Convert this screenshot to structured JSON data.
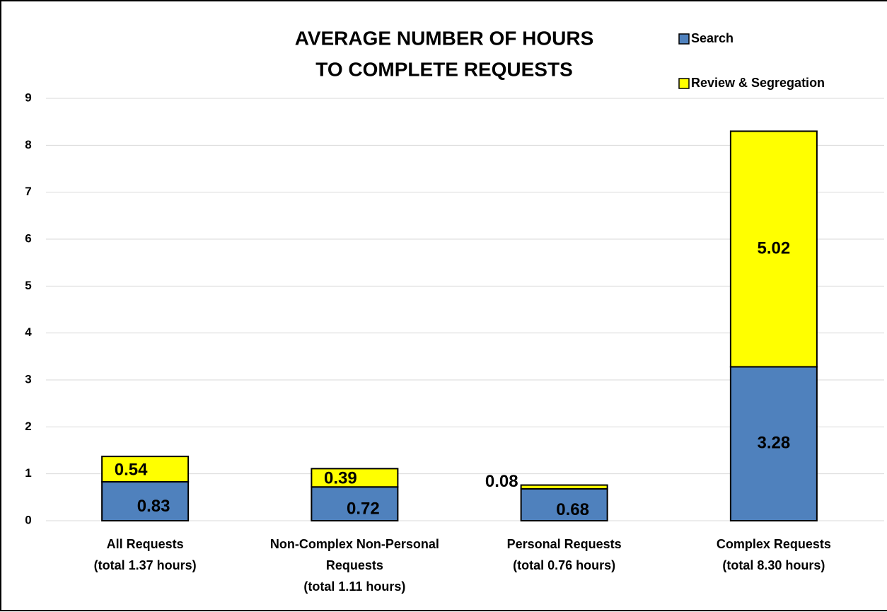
{
  "chart_data": {
    "type": "stacked_bar",
    "title": [
      "AVERAGE NUMBER OF HOURS",
      "TO COMPLETE REQUESTS"
    ],
    "categories": [
      [
        "All Requests",
        "(total 1.37 hours)"
      ],
      [
        "Non-Complex Non-Personal",
        "Requests",
        "(total 1.11 hours)"
      ],
      [
        "Personal Requests",
        "(total 0.76 hours)"
      ],
      [
        "Complex Requests",
        "(total 8.30 hours)"
      ]
    ],
    "series": [
      {
        "name": "Search",
        "color": "#4f81bd",
        "values": [
          0.83,
          0.72,
          0.68,
          3.28
        ]
      },
      {
        "name": "Review & Segregation",
        "color": "#ffff00",
        "values": [
          0.54,
          0.39,
          0.08,
          5.02
        ]
      }
    ],
    "ylim": [
      0,
      9
    ],
    "yticks": [
      0,
      1,
      2,
      3,
      4,
      5,
      6,
      7,
      8,
      9
    ],
    "grid": true,
    "legend": "top right"
  }
}
